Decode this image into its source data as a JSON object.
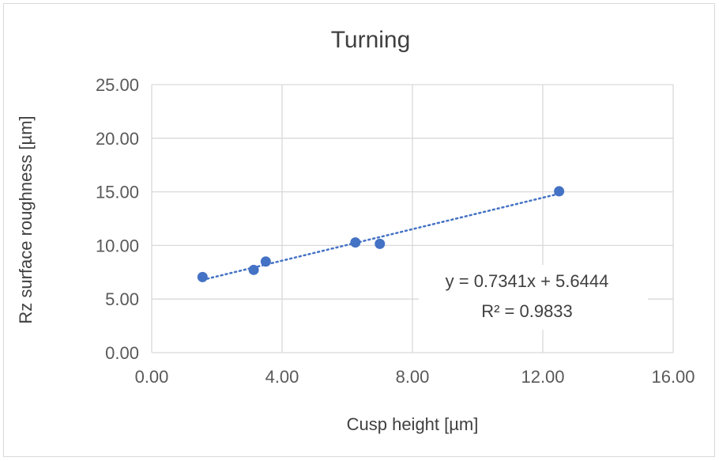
{
  "chart_data": {
    "type": "scatter",
    "title": "Turning",
    "xlabel": "Cusp height [µm]",
    "ylabel": "Rz surface roughness [µm]",
    "xlim": [
      0,
      16
    ],
    "ylim": [
      0,
      25
    ],
    "x_ticks": [
      0,
      4,
      8,
      12,
      16
    ],
    "y_ticks": [
      0,
      5,
      10,
      15,
      20,
      25
    ],
    "x_tick_labels": [
      "0.00",
      "4.00",
      "8.00",
      "12.00",
      "16.00"
    ],
    "y_tick_labels": [
      "0.00",
      "5.00",
      "10.00",
      "15.00",
      "20.00",
      "25.00"
    ],
    "grid": true,
    "legend": "none",
    "series": [
      {
        "color": "#4472c4",
        "points": [
          {
            "x": 1.56,
            "y": 7.05
          },
          {
            "x": 3.13,
            "y": 7.72
          },
          {
            "x": 3.5,
            "y": 8.5
          },
          {
            "x": 6.25,
            "y": 10.28
          },
          {
            "x": 7.0,
            "y": 10.15
          },
          {
            "x": 12.5,
            "y": 15.05
          }
        ]
      }
    ],
    "trendline": {
      "type": "linear",
      "slope": 0.7341,
      "intercept": 5.6444,
      "r2": 0.9833,
      "style": "dotted",
      "color": "#4472c4",
      "equation_label": "y = 0.7341x + 5.6444",
      "r2_label": "R² = 0.9833"
    },
    "colors": {
      "grid": "#d9d9d9",
      "text": "#595959"
    }
  }
}
